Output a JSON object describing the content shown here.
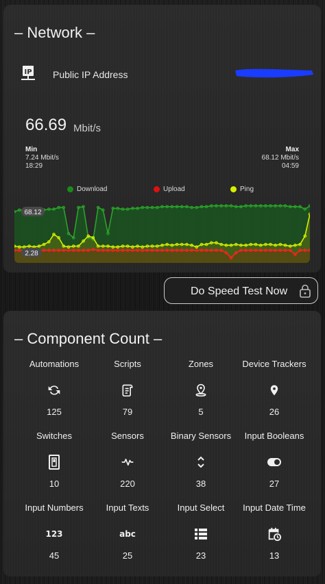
{
  "network": {
    "title": "– Network –",
    "public_ip_label": "Public IP Address",
    "speed_value": "66.69",
    "speed_unit": "Mbit/s",
    "min": {
      "label": "Min",
      "value": "7.24 Mbit/s",
      "time": "18:29"
    },
    "max": {
      "label": "Max",
      "value": "68.12 Mbit/s",
      "time": "04:59"
    },
    "legend": [
      {
        "name": "Download",
        "color": "#1b8a1b"
      },
      {
        "name": "Upload",
        "color": "#e01010"
      },
      {
        "name": "Ping",
        "color": "#d7f000"
      }
    ],
    "chart_labels": {
      "top": "68.12",
      "bottom": "2.28"
    }
  },
  "chart_data": {
    "type": "line",
    "ylim": [
      0,
      75
    ],
    "series": [
      {
        "name": "Download",
        "color": "#2aa52a",
        "values": [
          61,
          63,
          63,
          62,
          62,
          63,
          63,
          64,
          64,
          66,
          66,
          35,
          30,
          66,
          67,
          30,
          28,
          66,
          63,
          35,
          65,
          65,
          64,
          64,
          65,
          65,
          66,
          66,
          66,
          66,
          67,
          67,
          67,
          67,
          67,
          67,
          66,
          66,
          67,
          67,
          68,
          68,
          68,
          68,
          68,
          67,
          67,
          68,
          68,
          68,
          68,
          68,
          68,
          68,
          68,
          68,
          67,
          67,
          67,
          64,
          68
        ]
      },
      {
        "name": "Ping",
        "color": "#d7f000",
        "values": [
          20,
          19,
          19,
          20,
          19,
          20,
          22,
          25,
          34,
          30,
          20,
          19,
          20,
          20,
          26,
          32,
          30,
          20,
          20,
          20,
          19,
          19,
          20,
          20,
          19,
          20,
          19,
          20,
          20,
          20,
          21,
          22,
          21,
          22,
          22,
          22,
          21,
          19,
          22,
          22,
          24,
          24,
          22,
          21,
          21,
          22,
          21,
          21,
          22,
          22,
          21,
          22,
          22,
          21,
          22,
          21,
          20,
          21,
          22,
          32,
          58
        ]
      },
      {
        "name": "Upload",
        "color": "#ff2020",
        "values": [
          15,
          15,
          15,
          15,
          15,
          15,
          15,
          15,
          15,
          15,
          15,
          15,
          15,
          15,
          15,
          15,
          16,
          15,
          15,
          15,
          15,
          15,
          15,
          15,
          15,
          15,
          15,
          15,
          15,
          15,
          15,
          15,
          15,
          15,
          15,
          15,
          15,
          15,
          15,
          15,
          15,
          15,
          15,
          12,
          6,
          12,
          15,
          15,
          15,
          15,
          15,
          15,
          15,
          15,
          15,
          15,
          15,
          10,
          15,
          15,
          15
        ]
      }
    ]
  },
  "speed_test": {
    "label": "Do Speed Test Now"
  },
  "components": {
    "title": "– Component Count –",
    "items": [
      {
        "name": "Automations",
        "icon": "refresh-icon",
        "count": "125"
      },
      {
        "name": "Scripts",
        "icon": "script-icon",
        "count": "79"
      },
      {
        "name": "Zones",
        "icon": "map-marker-radius-icon",
        "count": "5"
      },
      {
        "name": "Device Trackers",
        "icon": "map-marker-icon",
        "count": "26"
      },
      {
        "name": "Switches",
        "icon": "light-switch-icon",
        "count": "10"
      },
      {
        "name": "Sensors",
        "icon": "pulse-icon",
        "count": "220"
      },
      {
        "name": "Binary Sensors",
        "icon": "chevron-up-down-icon",
        "count": "38"
      },
      {
        "name": "Input Booleans",
        "icon": "toggle-icon",
        "count": "27"
      },
      {
        "name": "Input Numbers",
        "icon": "numeric-icon",
        "count": "45",
        "glyph": "123"
      },
      {
        "name": "Input Texts",
        "icon": "alphabetical-icon",
        "count": "25",
        "glyph": "abc"
      },
      {
        "name": "Input Select",
        "icon": "format-list-icon",
        "count": "23"
      },
      {
        "name": "Input Date Time",
        "icon": "calendar-clock-icon",
        "count": "13"
      }
    ]
  }
}
